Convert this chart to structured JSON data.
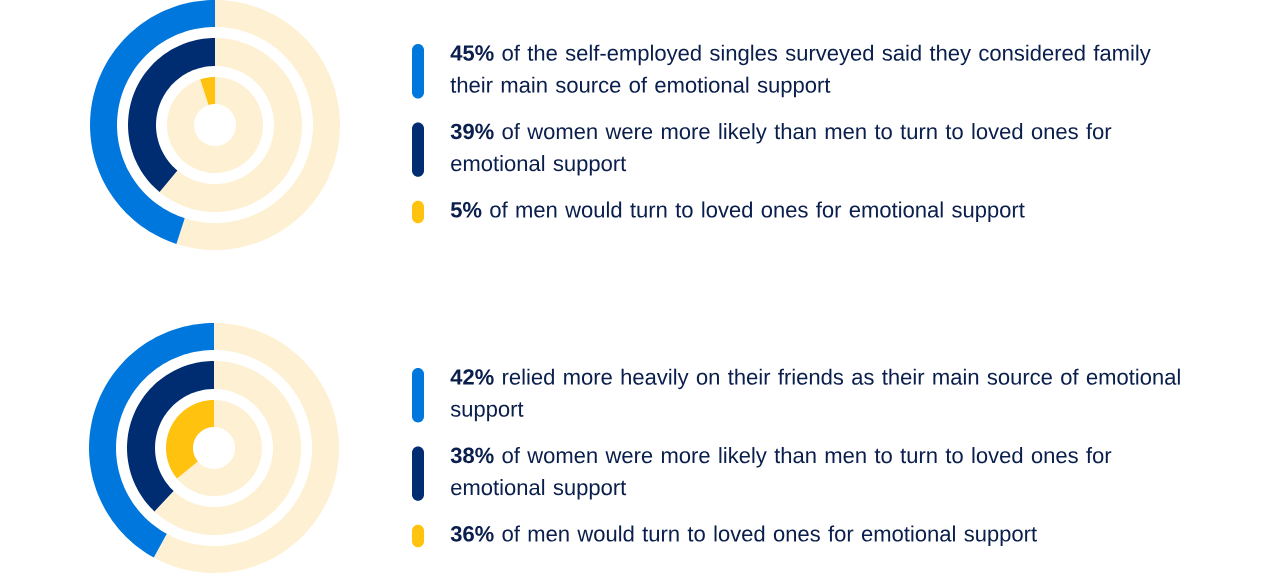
{
  "chart_data": [
    {
      "type": "other",
      "categories": [
        "of the self-employed singles surveyed said they considered family their main source of emotional support",
        "of women were more likely than men to turn to loved ones for emotional support",
        "of men would turn to loved ones for emotional support"
      ],
      "values": [
        45,
        39,
        5
      ],
      "value_labels": [
        "45%",
        "39%",
        "5%"
      ],
      "colors": [
        "#0077dd",
        "#002d72",
        "#ffc20e"
      ]
    },
    {
      "type": "other",
      "categories": [
        "relied more heavily on their friends as their main source of emotional support",
        "of women were more likely than men to turn to loved ones for emotional support",
        "of men would turn to loved ones for emotional support"
      ],
      "values": [
        42,
        38,
        36
      ],
      "value_labels": [
        "42%",
        "38%",
        "36%"
      ],
      "colors": [
        "#0077dd",
        "#002d72",
        "#ffc20e"
      ]
    }
  ]
}
